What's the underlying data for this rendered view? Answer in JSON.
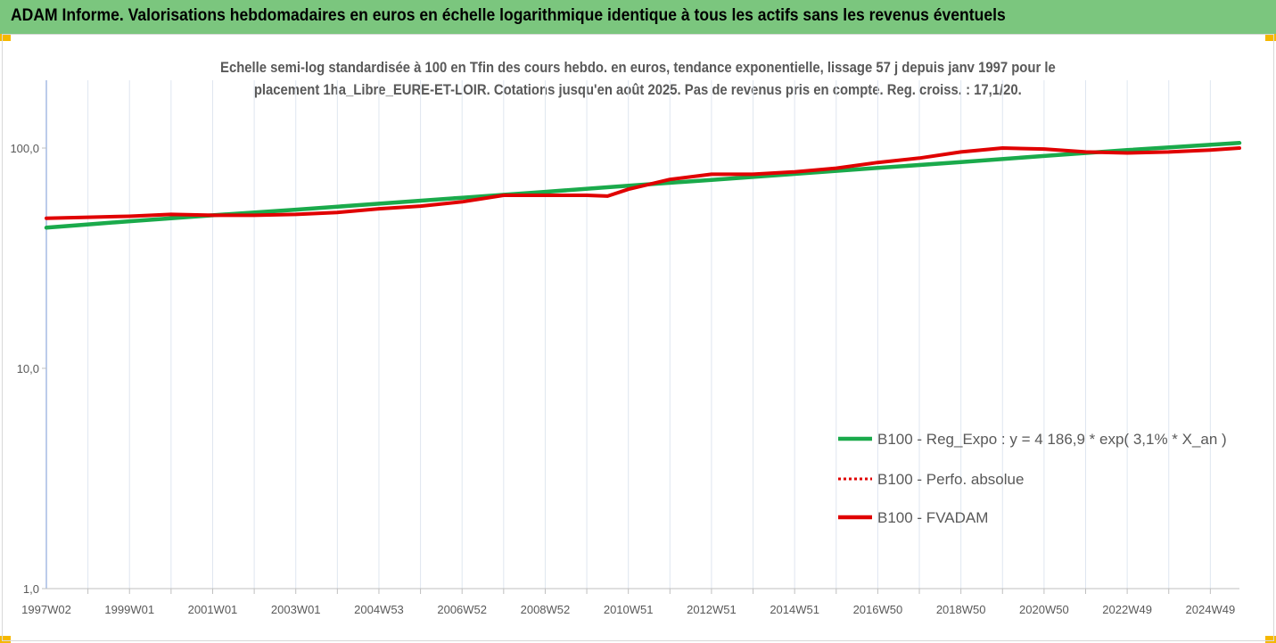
{
  "header": {
    "title": "ADAM Informe. Valorisations hebdomadaires en euros en échelle logarithmique identique à tous les actifs sans les revenus éventuels"
  },
  "chart_data": {
    "type": "line",
    "title_lines": [
      "Echelle semi-log standardisée à 100 en Tfin des cours hebdo. en euros, tendance exponentielle, lissage 57 j depuis janv 1997 pour le",
      "placement 1ha_Libre_EURE-ET-LOIR. Cotations jusqu'en août 2025. Pas de revenus pris en compte. Reg. croiss. : 17,1/20."
    ],
    "y_scale": "log",
    "ylim": [
      1,
      200
    ],
    "y_ticks": [
      {
        "value": 1,
        "label": "1,0"
      },
      {
        "value": 10,
        "label": "10,0"
      },
      {
        "value": 100,
        "label": "100,0"
      }
    ],
    "xlim": [
      1997.0,
      2025.7
    ],
    "x_ticks": [
      {
        "value": 1997.0,
        "label": "1997W02"
      },
      {
        "value": 1999.0,
        "label": "1999W01"
      },
      {
        "value": 2001.0,
        "label": "2001W01"
      },
      {
        "value": 2003.0,
        "label": "2003W01"
      },
      {
        "value": 2005.0,
        "label": "2004W53"
      },
      {
        "value": 2007.0,
        "label": "2006W52"
      },
      {
        "value": 2009.0,
        "label": "2008W52"
      },
      {
        "value": 2011.0,
        "label": "2010W51"
      },
      {
        "value": 2013.0,
        "label": "2012W51"
      },
      {
        "value": 2015.0,
        "label": "2014W51"
      },
      {
        "value": 2017.0,
        "label": "2016W50"
      },
      {
        "value": 2019.0,
        "label": "2018W50"
      },
      {
        "value": 2021.0,
        "label": "2020W50"
      },
      {
        "value": 2023.0,
        "label": "2022W49"
      },
      {
        "value": 2025.0,
        "label": "2024W49"
      }
    ],
    "grid": "vertical",
    "legend_position": "bottom-right",
    "series": [
      {
        "name": "B100 - Reg_Expo : y = 4 186,9 * exp( 3,1% *  X_an )",
        "color": "#1aaa4b",
        "style": "solid",
        "x": [
          1997.0,
          1999.0,
          2001.0,
          2003.0,
          2005.0,
          2007.0,
          2009.0,
          2011.0,
          2013.0,
          2015.0,
          2017.0,
          2019.0,
          2021.0,
          2023.0,
          2025.7
        ],
        "y": [
          43.5,
          46.5,
          49.5,
          52.5,
          55.9,
          59.5,
          63.3,
          67.4,
          71.7,
          76.3,
          81.2,
          86.4,
          92.0,
          97.9,
          105.5
        ]
      },
      {
        "name": "B100 - Perfo. absolue",
        "color": "#e00000",
        "style": "dotted",
        "x": [
          1997.0,
          1998.0,
          1999.0,
          2000.0,
          2001.0,
          2002.0,
          2003.0,
          2004.0,
          2005.0,
          2006.0,
          2007.0,
          2008.0,
          2009.0,
          2010.0,
          2010.5,
          2011.0,
          2012.0,
          2013.0,
          2014.0,
          2015.0,
          2016.0,
          2017.0,
          2018.0,
          2019.0,
          2020.0,
          2021.0,
          2022.0,
          2023.0,
          2024.0,
          2025.0,
          2025.7
        ],
        "y": [
          48,
          48.5,
          49,
          50,
          49.5,
          49.5,
          50,
          51,
          53,
          54.5,
          57,
          61,
          61,
          61,
          60.5,
          65,
          72,
          76,
          76,
          78,
          81,
          86,
          90,
          96,
          100,
          99,
          96,
          95,
          96,
          98,
          100
        ]
      },
      {
        "name": "B100 - FVADAM",
        "color": "#e00000",
        "style": "solid",
        "x": [
          1997.0,
          1998.0,
          1999.0,
          2000.0,
          2001.0,
          2002.0,
          2003.0,
          2004.0,
          2005.0,
          2006.0,
          2007.0,
          2008.0,
          2009.0,
          2010.0,
          2010.5,
          2011.0,
          2012.0,
          2013.0,
          2014.0,
          2015.0,
          2016.0,
          2017.0,
          2018.0,
          2019.0,
          2020.0,
          2021.0,
          2022.0,
          2023.0,
          2024.0,
          2025.0,
          2025.7
        ],
        "y": [
          48,
          48.5,
          49,
          50,
          49.5,
          49.5,
          50,
          51,
          53,
          54.5,
          57,
          61,
          61,
          61,
          60.5,
          65,
          72,
          76,
          76,
          78,
          81,
          86,
          90,
          96,
          100,
          99,
          96,
          95,
          96,
          98,
          100
        ]
      }
    ]
  }
}
